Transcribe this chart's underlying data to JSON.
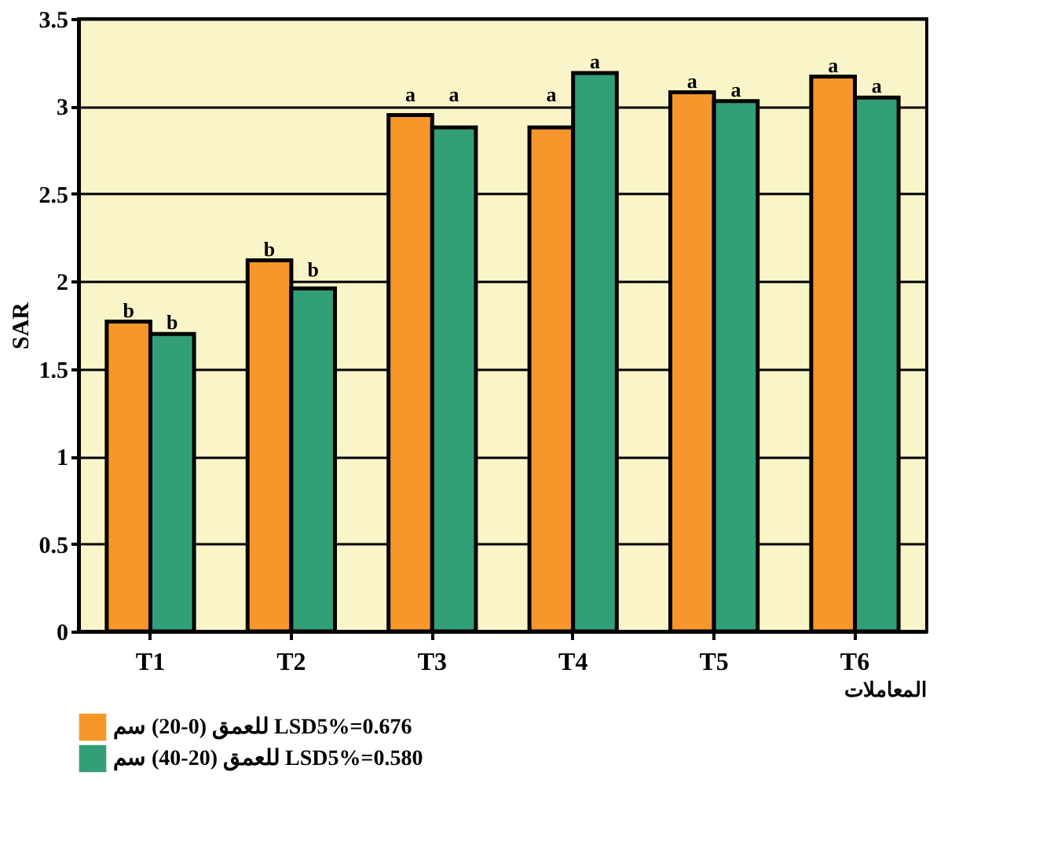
{
  "chart_data": {
    "type": "bar",
    "ylabel": "SAR",
    "xlabel": "المعاملات",
    "categories": [
      "T1",
      "T2",
      "T3",
      "T4",
      "T5",
      "T6"
    ],
    "series": [
      {
        "name": "للعمق (0-20) سم LSD5%=0.676",
        "color": "#f7962b",
        "values": [
          1.77,
          2.12,
          2.95,
          2.88,
          3.08,
          3.17
        ],
        "value_labels": [
          "b",
          "b",
          "a",
          "a",
          "a",
          "a"
        ]
      },
      {
        "name": "للعمق (20-40) سم LSD5%=0.580",
        "color": "#329f77",
        "values": [
          1.7,
          1.96,
          2.88,
          3.19,
          3.03,
          3.05
        ],
        "value_labels": [
          "b",
          "b",
          "a",
          "a",
          "a",
          "a"
        ]
      }
    ],
    "ylim": [
      0,
      3.5
    ],
    "yticks": [
      {
        "value": 0,
        "label": "0"
      },
      0.5,
      {
        "value": 1,
        "label": "1"
      },
      1.5,
      {
        "value": 2,
        "label": "2"
      },
      2.5,
      {
        "value": 3,
        "label": "3"
      },
      3.5
    ],
    "grid": "y",
    "legend": "bottom left"
  }
}
